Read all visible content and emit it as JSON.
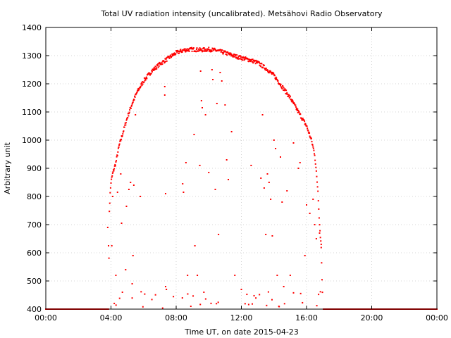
{
  "chart_data": {
    "type": "scatter",
    "title": "Total UV radiation intensity (uncalibrated). Metsähovi Radio Observatory",
    "xlabel": "Time UT, on date 2015-04-23",
    "ylabel": "Arbitrary unit",
    "xlim": [
      "00:00",
      "24:00"
    ],
    "ylim": [
      400,
      1400
    ],
    "x_ticks": [
      "00:00",
      "04:00",
      "08:00",
      "12:00",
      "16:00",
      "20:00",
      "00:00"
    ],
    "y_ticks": [
      "400",
      "500",
      "600",
      "700",
      "800",
      "900",
      "1000",
      "1100",
      "1200",
      "1300",
      "1400"
    ],
    "grid": true,
    "legend": "none",
    "marker_color": "#ff0000",
    "series": [
      {
        "x_unit": "hours UT",
        "envelope_points": [
          [
            3.85,
            400
          ],
          [
            3.9,
            750
          ],
          [
            3.95,
            810
          ],
          [
            4.0,
            850
          ],
          [
            4.1,
            880
          ],
          [
            4.3,
            920
          ],
          [
            4.5,
            980
          ],
          [
            4.7,
            1020
          ],
          [
            5.0,
            1080
          ],
          [
            5.3,
            1130
          ],
          [
            5.6,
            1170
          ],
          [
            6.0,
            1210
          ],
          [
            6.5,
            1245
          ],
          [
            7.0,
            1270
          ],
          [
            7.5,
            1290
          ],
          [
            8.0,
            1310
          ],
          [
            8.5,
            1320
          ],
          [
            9.0,
            1322
          ],
          [
            9.5,
            1320
          ],
          [
            10.0,
            1322
          ],
          [
            10.5,
            1318
          ],
          [
            11.0,
            1310
          ],
          [
            11.5,
            1300
          ],
          [
            12.0,
            1292
          ],
          [
            12.5,
            1285
          ],
          [
            13.0,
            1275
          ],
          [
            13.5,
            1255
          ],
          [
            14.0,
            1230
          ],
          [
            14.5,
            1190
          ],
          [
            15.0,
            1150
          ],
          [
            15.5,
            1100
          ],
          [
            16.0,
            1050
          ],
          [
            16.3,
            1000
          ],
          [
            16.5,
            950
          ],
          [
            16.7,
            820
          ],
          [
            16.8,
            700
          ],
          [
            16.9,
            620
          ],
          [
            17.0,
            400
          ]
        ],
        "scattered_low_points": [
          [
            3.8,
            690
          ],
          [
            3.85,
            625
          ],
          [
            4.05,
            625
          ],
          [
            4.1,
            800
          ],
          [
            4.3,
            520
          ],
          [
            4.4,
            815
          ],
          [
            4.6,
            880
          ],
          [
            4.65,
            705
          ],
          [
            4.7,
            460
          ],
          [
            4.9,
            540
          ],
          [
            4.95,
            765
          ],
          [
            5.1,
            825
          ],
          [
            5.2,
            850
          ],
          [
            5.3,
            490
          ],
          [
            5.35,
            590
          ],
          [
            5.4,
            840
          ],
          [
            5.5,
            1090
          ],
          [
            5.8,
            800
          ],
          [
            7.3,
            1190
          ],
          [
            7.3,
            1160
          ],
          [
            7.35,
            810
          ],
          [
            7.35,
            480
          ],
          [
            7.4,
            470
          ],
          [
            8.4,
            845
          ],
          [
            8.45,
            815
          ],
          [
            8.6,
            920
          ],
          [
            8.7,
            520
          ],
          [
            8.9,
            410
          ],
          [
            9.1,
            1020
          ],
          [
            9.15,
            625
          ],
          [
            9.3,
            520
          ],
          [
            9.45,
            910
          ],
          [
            9.5,
            1245
          ],
          [
            9.55,
            1140
          ],
          [
            9.6,
            1115
          ],
          [
            9.7,
            460
          ],
          [
            9.8,
            1090
          ],
          [
            10.0,
            885
          ],
          [
            10.2,
            1250
          ],
          [
            10.25,
            1215
          ],
          [
            10.4,
            825
          ],
          [
            10.5,
            1130
          ],
          [
            10.6,
            665
          ],
          [
            10.7,
            1240
          ],
          [
            10.8,
            1210
          ],
          [
            11.0,
            1125
          ],
          [
            11.1,
            930
          ],
          [
            11.2,
            860
          ],
          [
            11.4,
            1030
          ],
          [
            11.6,
            520
          ],
          [
            12.0,
            470
          ],
          [
            12.6,
            910
          ],
          [
            13.2,
            865
          ],
          [
            13.3,
            1090
          ],
          [
            13.4,
            830
          ],
          [
            13.5,
            665
          ],
          [
            13.6,
            880
          ],
          [
            13.7,
            850
          ],
          [
            13.8,
            790
          ],
          [
            13.9,
            660
          ],
          [
            14.0,
            1000
          ],
          [
            14.1,
            970
          ],
          [
            14.2,
            520
          ],
          [
            14.3,
            410
          ],
          [
            14.4,
            940
          ],
          [
            14.5,
            780
          ],
          [
            14.6,
            480
          ],
          [
            14.8,
            820
          ],
          [
            15.0,
            520
          ],
          [
            15.2,
            990
          ],
          [
            15.5,
            900
          ],
          [
            15.6,
            920
          ],
          [
            15.9,
            590
          ],
          [
            16.0,
            770
          ],
          [
            16.2,
            740
          ],
          [
            16.4,
            790
          ],
          [
            16.5,
            700
          ],
          [
            16.6,
            650
          ],
          [
            16.8,
            670
          ],
          [
            16.9,
            630
          ]
        ],
        "baseline_value": 400
      }
    ]
  }
}
